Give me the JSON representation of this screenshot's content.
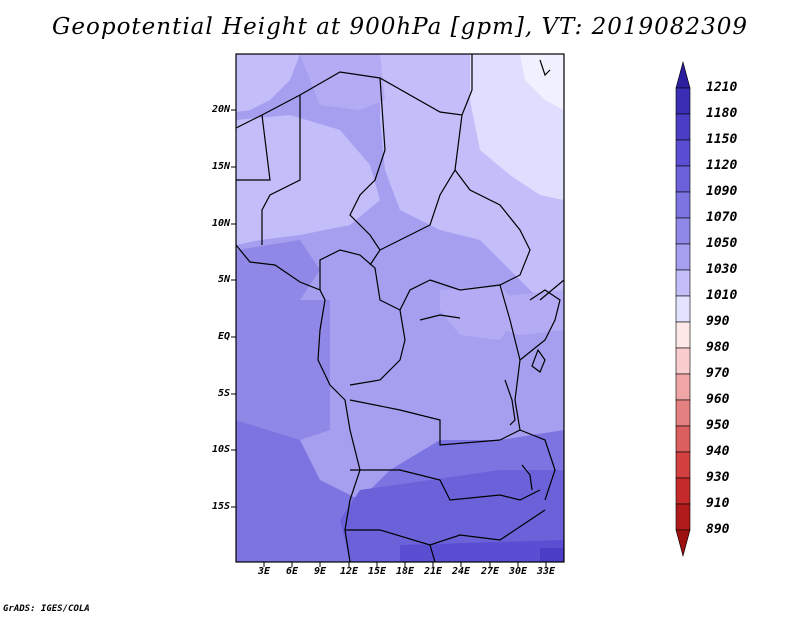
{
  "title": "Geopotential Height at 900hPa [gpm], VT: 2019082309",
  "credit": "GrADS: IGES/COLA",
  "map": {
    "lat_labels": [
      "20N",
      "15N",
      "10N",
      "5N",
      "EQ",
      "5S",
      "10S",
      "15S"
    ],
    "lon_labels": [
      "3E",
      "6E",
      "9E",
      "12E",
      "15E",
      "18E",
      "21E",
      "24E",
      "27E",
      "30E",
      "33E"
    ]
  },
  "colorbar": {
    "levels": [
      "1210",
      "1180",
      "1150",
      "1120",
      "1090",
      "1070",
      "1050",
      "1030",
      "1010",
      "990",
      "980",
      "970",
      "960",
      "950",
      "940",
      "930",
      "910",
      "890"
    ],
    "colors": [
      "#2b1fa0",
      "#3a2fb4",
      "#4a3ec6",
      "#5a4fd2",
      "#6b62da",
      "#7c74e0",
      "#9088e6",
      "#a69ff0",
      "#c3befa",
      "#e3e2ff",
      "#fde8e8",
      "#f9cdcd",
      "#f0a6a6",
      "#e58080",
      "#dc5f5f",
      "#d24040",
      "#c42a2a",
      "#b01a1a",
      "#9c1010"
    ]
  }
}
